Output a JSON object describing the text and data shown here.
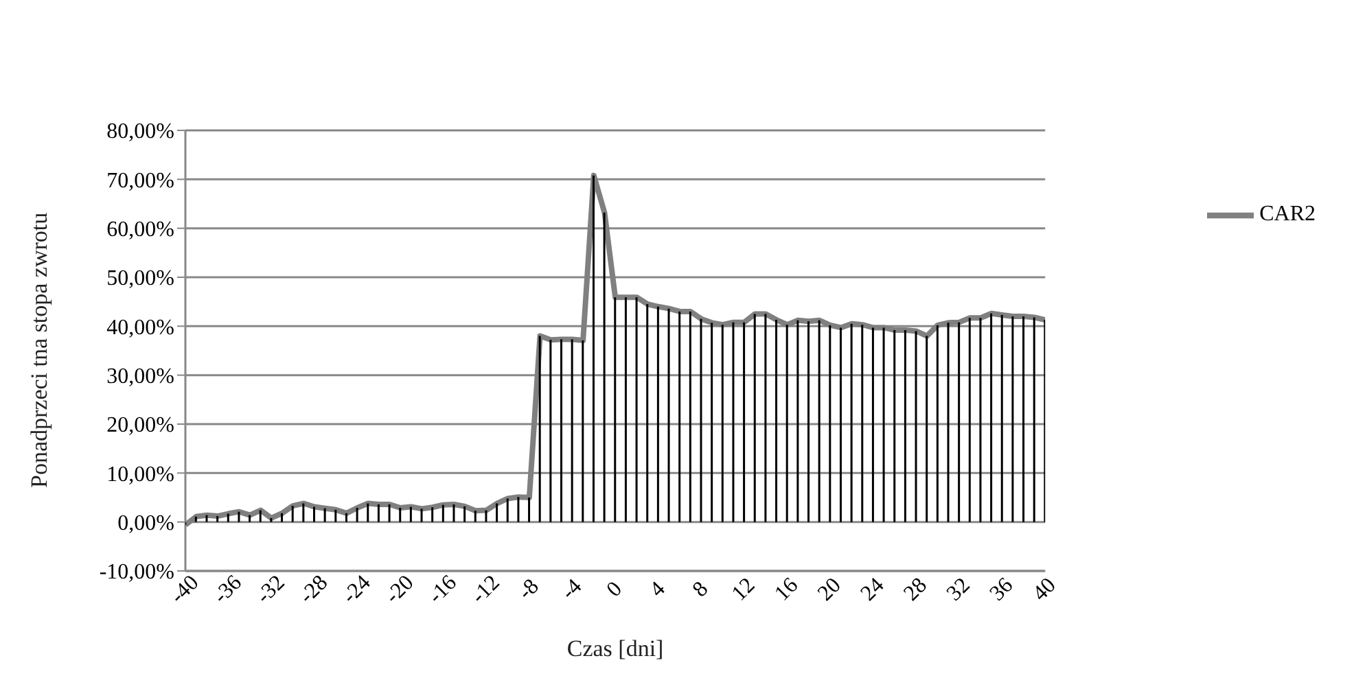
{
  "chart_data": {
    "type": "line",
    "xlabel": "Czas [dni]",
    "ylabel": "Ponadprzeci  tna stopa zwrotu",
    "x": [
      -40,
      -39,
      -38,
      -37,
      -36,
      -35,
      -34,
      -33,
      -32,
      -31,
      -30,
      -29,
      -28,
      -27,
      -26,
      -25,
      -24,
      -23,
      -22,
      -21,
      -20,
      -19,
      -18,
      -17,
      -16,
      -15,
      -14,
      -13,
      -12,
      -11,
      -10,
      -9,
      -8,
      -7,
      -6,
      -5,
      -4,
      -3,
      -2,
      -1,
      0,
      1,
      2,
      3,
      4,
      5,
      6,
      7,
      8,
      9,
      10,
      11,
      12,
      13,
      14,
      15,
      16,
      17,
      18,
      19,
      20,
      21,
      22,
      23,
      24,
      25,
      26,
      27,
      28,
      29,
      30,
      31,
      32,
      33,
      34,
      35,
      36,
      37,
      38,
      39,
      40
    ],
    "series": [
      {
        "type": "bar",
        "color": "#000000",
        "values": [
          -0.6,
          1.1,
          1.4,
          1.2,
          1.7,
          2.1,
          1.4,
          2.4,
          0.8,
          1.8,
          3.3,
          3.8,
          3.1,
          2.8,
          2.5,
          1.8,
          2.9,
          3.8,
          3.6,
          3.6,
          2.9,
          3.1,
          2.7,
          3.0,
          3.5,
          3.6,
          3.2,
          2.3,
          2.4,
          3.8,
          4.8,
          5.1,
          5.0,
          38.0,
          37.2,
          37.3,
          37.3,
          37.1,
          70.8,
          63.2,
          45.9,
          45.9,
          45.9,
          44.5,
          44.0,
          43.6,
          43.0,
          43.0,
          41.5,
          40.7,
          40.3,
          40.8,
          40.8,
          42.5,
          42.5,
          41.3,
          40.3,
          41.2,
          41.0,
          41.2,
          40.2,
          39.7,
          40.5,
          40.3,
          39.7,
          39.7,
          39.2,
          39.2,
          39.0,
          38.0,
          40.2,
          40.7,
          40.8,
          41.7,
          41.7,
          42.6,
          42.3,
          42.0,
          42.0,
          41.8,
          41.3
        ]
      },
      {
        "name": "CAR2",
        "color": "#808080",
        "values": [
          -0.6,
          1.1,
          1.4,
          1.2,
          1.7,
          2.1,
          1.4,
          2.4,
          0.8,
          1.8,
          3.3,
          3.8,
          3.1,
          2.8,
          2.5,
          1.8,
          2.9,
          3.8,
          3.6,
          3.6,
          2.9,
          3.1,
          2.7,
          3.0,
          3.5,
          3.6,
          3.2,
          2.3,
          2.4,
          3.8,
          4.8,
          5.1,
          5.0,
          38.0,
          37.2,
          37.3,
          37.3,
          37.1,
          70.8,
          63.2,
          45.9,
          45.9,
          45.9,
          44.5,
          44.0,
          43.6,
          43.0,
          43.0,
          41.5,
          40.7,
          40.3,
          40.8,
          40.8,
          42.5,
          42.5,
          41.3,
          40.3,
          41.2,
          41.0,
          41.2,
          40.2,
          39.7,
          40.5,
          40.3,
          39.7,
          39.7,
          39.2,
          39.2,
          39.0,
          38.0,
          40.2,
          40.7,
          40.8,
          41.7,
          41.7,
          42.6,
          42.3,
          42.0,
          42.0,
          41.8,
          41.3
        ]
      }
    ],
    "xlim": [
      -40,
      40
    ],
    "xticks": [
      -40,
      -36,
      -32,
      -28,
      -24,
      -20,
      -16,
      -12,
      -8,
      -4,
      0,
      4,
      8,
      12,
      16,
      20,
      24,
      28,
      32,
      36,
      40
    ],
    "ylim": [
      -10,
      80
    ],
    "yticks": [
      {
        "value": -10,
        "label": "-10,00%"
      },
      {
        "value": 0,
        "label": "0,00%"
      },
      {
        "value": 10,
        "label": "10,00%"
      },
      {
        "value": 20,
        "label": "20,00%"
      },
      {
        "value": 30,
        "label": "30,00%"
      },
      {
        "value": 40,
        "label": "40,00%"
      },
      {
        "value": 50,
        "label": "50,00%"
      },
      {
        "value": 60,
        "label": "60,00%"
      },
      {
        "value": 70,
        "label": "70,00%"
      },
      {
        "value": 80,
        "label": "80,00%"
      }
    ],
    "grid": "y",
    "legend": "right"
  }
}
